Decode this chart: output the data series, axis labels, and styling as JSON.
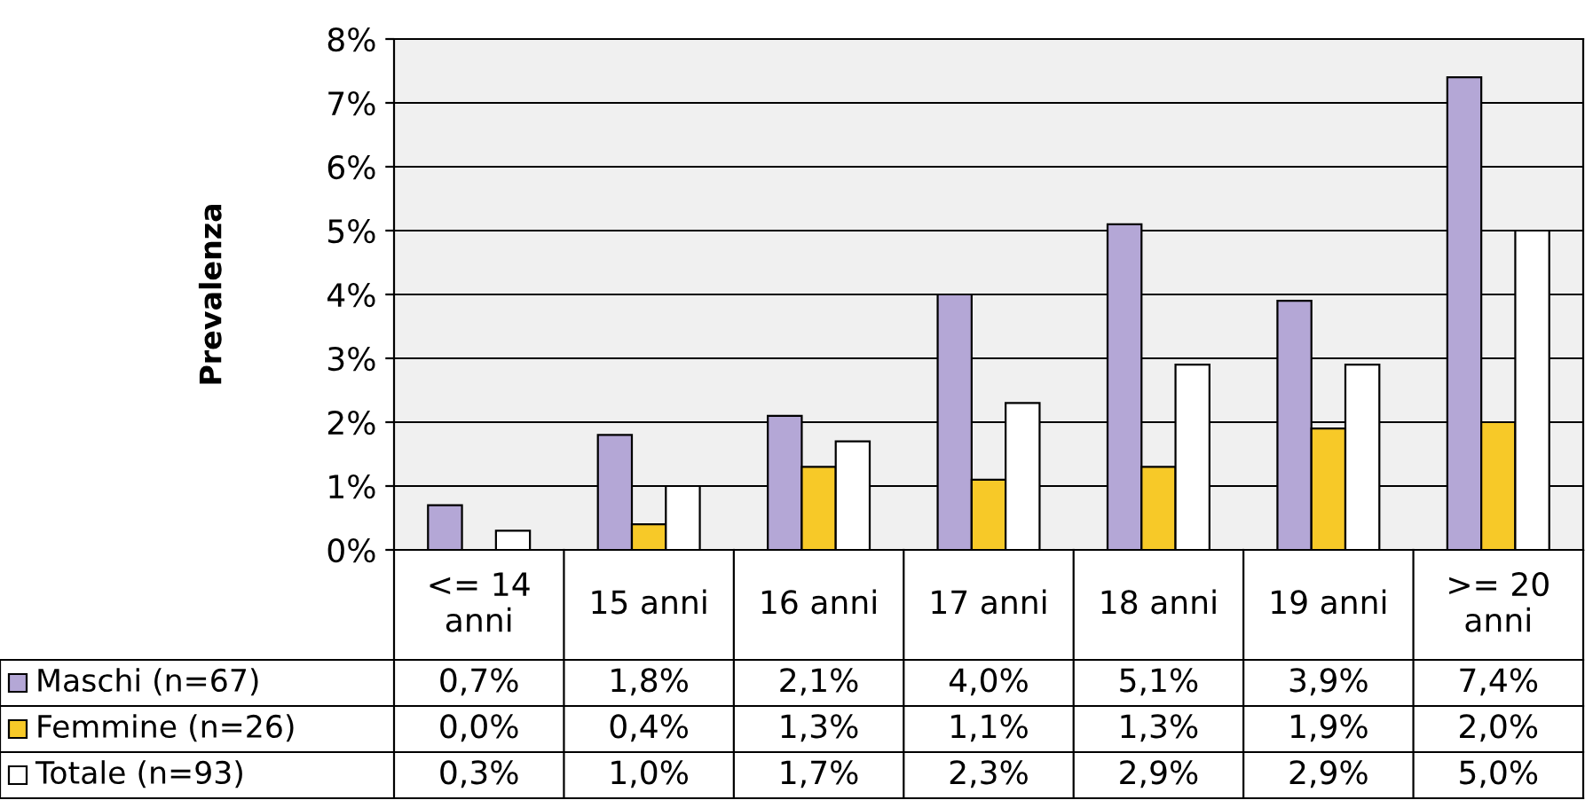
{
  "chart_data": {
    "type": "bar",
    "ylabel": "Prevalenza",
    "categories": [
      "<= 14 anni",
      "15 anni",
      "16 anni",
      "17 anni",
      "18 anni",
      "19 anni",
      ">= 20 anni"
    ],
    "series": [
      {
        "name": "Maschi (n=67)",
        "color": "#b4a7d6",
        "values": [
          0.7,
          1.8,
          2.1,
          4.0,
          5.1,
          3.9,
          7.4
        ],
        "value_labels": [
          "0,7%",
          "1,8%",
          "2,1%",
          "4,0%",
          "5,1%",
          "3,9%",
          "7,4%"
        ]
      },
      {
        "name": "Femmine (n=26)",
        "color": "#f7c928",
        "values": [
          0.0,
          0.4,
          1.3,
          1.1,
          1.3,
          1.9,
          2.0
        ],
        "value_labels": [
          "0,0%",
          "0,4%",
          "1,3%",
          "1,1%",
          "1,3%",
          "1,9%",
          "2,0%"
        ]
      },
      {
        "name": "Totale (n=93)",
        "color": "#ffffff",
        "values": [
          0.3,
          1.0,
          1.7,
          2.3,
          2.9,
          2.9,
          5.0
        ],
        "value_labels": [
          "0,3%",
          "1,0%",
          "1,7%",
          "2,3%",
          "2,9%",
          "2,9%",
          "5,0%"
        ]
      }
    ],
    "ylim": [
      0,
      8
    ],
    "yticks": [
      {
        "value": 0,
        "label": "0%"
      },
      {
        "value": 1,
        "label": "1%"
      },
      {
        "value": 2,
        "label": "2%"
      },
      {
        "value": 3,
        "label": "3%"
      },
      {
        "value": 4,
        "label": "4%"
      },
      {
        "value": 5,
        "label": "5%"
      },
      {
        "value": 6,
        "label": "6%"
      },
      {
        "value": 7,
        "label": "7%"
      },
      {
        "value": 8,
        "label": "8%"
      }
    ],
    "grid": "y",
    "legend": "bottom left"
  }
}
